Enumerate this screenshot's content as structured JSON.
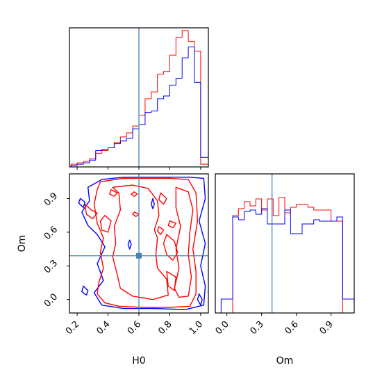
{
  "chart_data": {
    "type": "corner",
    "parameters": [
      "H0",
      "Om"
    ],
    "truth": {
      "H0": 0.6,
      "Om": 0.39
    },
    "series": [
      {
        "color": "#ff0000"
      },
      {
        "color": "#0000ff"
      }
    ],
    "truth_color": "#4682b4",
    "panels": [
      {
        "id": "H0-hist",
        "type": "step-histogram",
        "xlim": [
          0.15,
          1.05
        ],
        "xticks": [
          0.2,
          0.4,
          0.6,
          0.8,
          1.0
        ],
        "bin_edges": [
          0.16,
          0.2,
          0.24,
          0.28,
          0.32,
          0.36,
          0.4,
          0.44,
          0.48,
          0.52,
          0.56,
          0.6,
          0.64,
          0.68,
          0.72,
          0.76,
          0.8,
          0.84,
          0.88,
          0.92,
          0.96,
          1.0
        ],
        "values": [
          [
            2,
            3,
            4,
            6,
            10,
            12,
            14,
            18,
            22,
            25,
            30,
            38,
            50,
            55,
            68,
            70,
            82,
            95,
            100,
            92,
            85
          ],
          [
            1,
            2,
            3,
            5,
            12,
            13,
            14,
            17,
            19,
            21,
            28,
            31,
            40,
            41,
            50,
            52,
            60,
            65,
            80,
            88,
            62
          ]
        ],
        "tail": [
          [
            1.0,
            2
          ],
          [
            1.0,
            7
          ]
        ],
        "ymax": 102
      },
      {
        "id": "Om-hist",
        "type": "step-histogram",
        "xlim": [
          -0.1,
          1.1
        ],
        "xticks": [
          0.0,
          0.3,
          0.6,
          0.9
        ],
        "tick_labels": [
          "0.0",
          "0.3",
          "0.6",
          "0.9"
        ],
        "bin_edges": [
          -0.05,
          0.0,
          0.05,
          0.1,
          0.15,
          0.2,
          0.25,
          0.3,
          0.35,
          0.4,
          0.45,
          0.5,
          0.55,
          0.6,
          0.65,
          0.7,
          0.75,
          0.8,
          0.85,
          0.9,
          0.95,
          1.0,
          1.05,
          1.1
        ],
        "values": [
          [
            0,
            0,
            70,
            75,
            80,
            77,
            82,
            74,
            82,
            70,
            83,
            72,
            76,
            78,
            78,
            76,
            74,
            74,
            74,
            66,
            66,
            0,
            0
          ],
          [
            10,
            10,
            69,
            67,
            73,
            74,
            71,
            75,
            64,
            64,
            64,
            74,
            57,
            57,
            64,
            64,
            67,
            66,
            66,
            66,
            69,
            10,
            10
          ]
        ],
        "ymax": 100
      },
      {
        "id": "H0-Om-contour",
        "type": "contour",
        "xlim": [
          0.15,
          1.05
        ],
        "ylim": [
          -0.12,
          1.12
        ],
        "xticks": [
          0.2,
          0.4,
          0.6,
          0.8,
          1.0
        ],
        "yticks": [
          0.0,
          0.3,
          0.6,
          0.9
        ],
        "xlabel": "H0",
        "ylabel": "Om"
      }
    ]
  }
}
